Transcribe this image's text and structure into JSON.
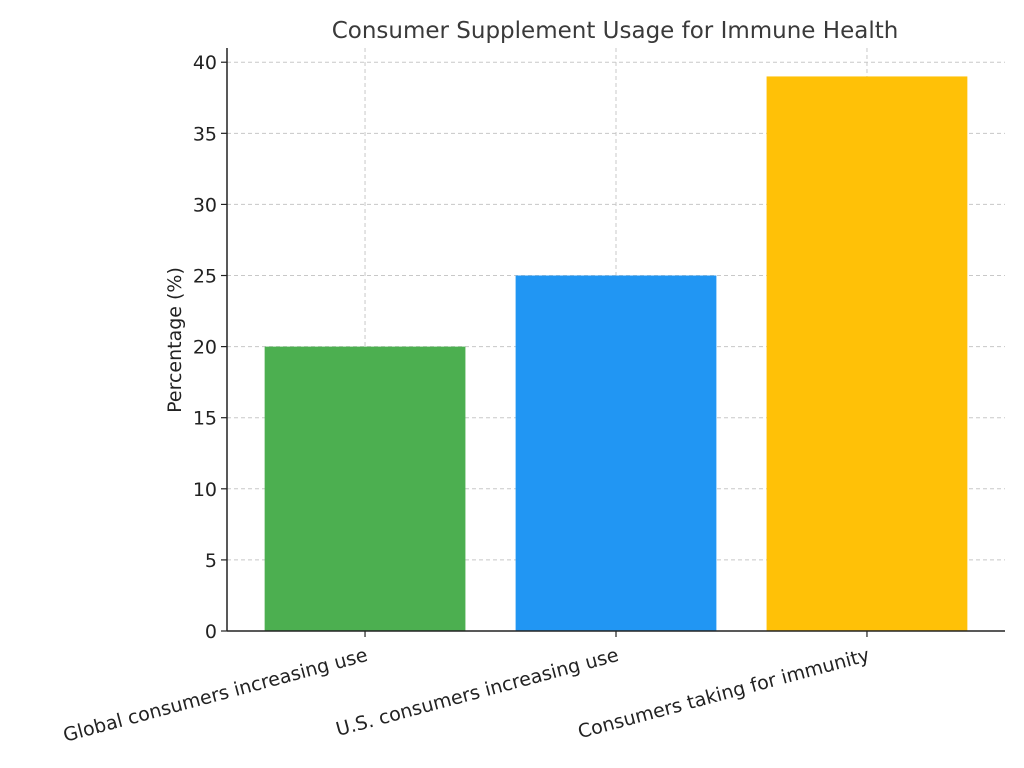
{
  "chart_data": {
    "type": "bar",
    "title": "Consumer Supplement Usage for Immune Health",
    "xlabel": "",
    "ylabel": "Percentage (%)",
    "categories": [
      "Global consumers increasing use",
      "U.S. consumers increasing use",
      "Consumers taking for immunity"
    ],
    "values": [
      20,
      25,
      39
    ],
    "colors": [
      "#4caf50",
      "#2196f3",
      "#ffc107"
    ],
    "ylim": [
      0,
      41
    ],
    "yticks": [
      0,
      5,
      10,
      15,
      20,
      25,
      30,
      35,
      40
    ],
    "grid": true,
    "legend": "none"
  }
}
